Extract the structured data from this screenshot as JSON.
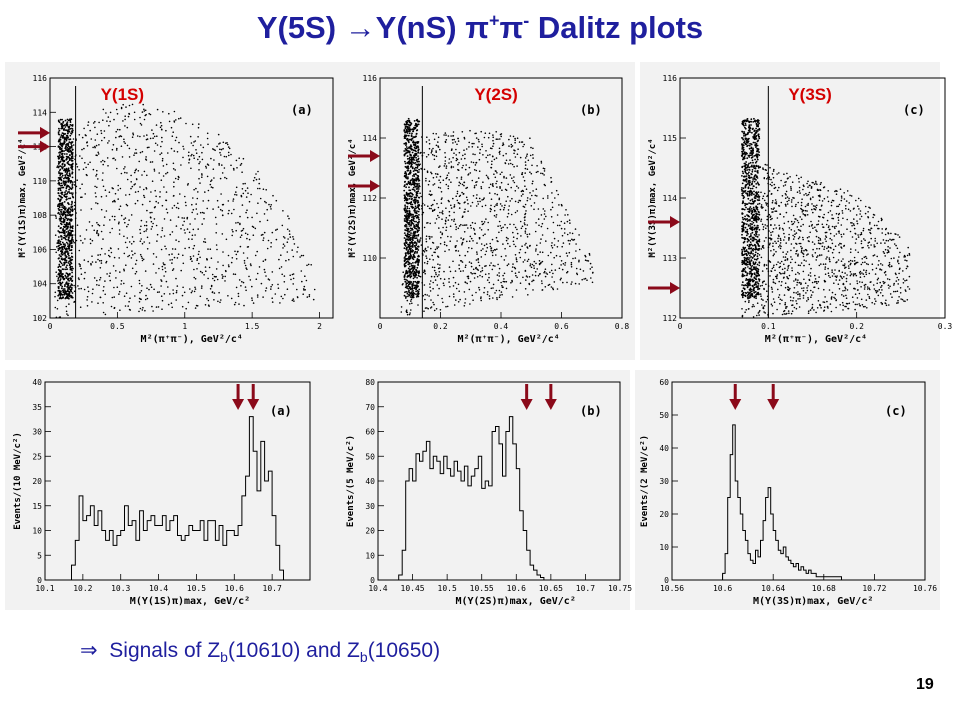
{
  "title": {
    "pre": "Υ(5S) ",
    "arrow": "→",
    "mid": "Υ(nS) π",
    "sup_plus": "+",
    "pi": "π",
    "sup_minus": "-",
    "post": " Dalitz plots"
  },
  "footer": {
    "arrow": "⇒",
    "text1": "Signals of Z",
    "sub1": "b",
    "text2": "(10610) and Z",
    "sub2": "b",
    "text3": "(10650)"
  },
  "page_number": "19",
  "colors": {
    "title": "#1f1f9e",
    "upsilon_label": "#d40000",
    "arrow": "#8b0a1a"
  },
  "chart_data": [
    {
      "id": "a",
      "type": "scatter",
      "panel_label": "(a)",
      "state_label": "Υ(1S)",
      "xlabel": "M²(π⁺π⁻), GeV²/c⁴",
      "ylabel": "M²(Υ(1S)π)max, GeV²/c⁴",
      "xlim": [
        0,
        2.1
      ],
      "ylim": [
        102,
        116
      ],
      "xticks": [
        0,
        0.5,
        1,
        1.5,
        2
      ],
      "xticklabels": [
        "0",
        "0.5",
        "1",
        "1.5",
        "2"
      ],
      "yticks": [
        102,
        104,
        106,
        108,
        110,
        112,
        114,
        116
      ],
      "yticklabels": [
        "102",
        "104",
        "106",
        "108",
        "110",
        "112",
        "114",
        "116"
      ],
      "cut_line_x": 0.19,
      "arrow_y": [
        112.8,
        112.0
      ],
      "density": {
        "band_x": [
          0.06,
          0.17
        ],
        "outline": [
          [
            0.03,
            103
          ],
          [
            0.05,
            112
          ],
          [
            0.3,
            114
          ],
          [
            0.6,
            114.6
          ],
          [
            1.0,
            114
          ],
          [
            1.4,
            112
          ],
          [
            1.7,
            109
          ],
          [
            1.95,
            105
          ],
          [
            2.0,
            103
          ]
        ]
      }
    },
    {
      "id": "b",
      "type": "scatter",
      "panel_label": "(b)",
      "state_label": "Υ(2S)",
      "xlabel": "M²(π⁺π⁻), GeV²/c⁴",
      "ylabel": "M²(Υ(2S)π)max, GeV²/c⁴",
      "xlim": [
        0,
        0.8
      ],
      "ylim": [
        108,
        116
      ],
      "xticks": [
        0,
        0.2,
        0.4,
        0.6,
        0.8
      ],
      "xticklabels": [
        "0",
        "0.2",
        "0.4",
        "0.6",
        "0.8"
      ],
      "yticks": [
        110,
        112,
        114,
        116
      ],
      "yticklabels": [
        "110",
        "112",
        "114",
        "116"
      ],
      "cut_line_x": 0.14,
      "arrow_y": [
        113.4,
        112.4
      ],
      "density": {
        "band_x": [
          0.08,
          0.13
        ],
        "outline": [
          [
            0.07,
            109
          ],
          [
            0.1,
            114
          ],
          [
            0.3,
            114.4
          ],
          [
            0.5,
            114
          ],
          [
            0.6,
            112
          ],
          [
            0.7,
            110
          ],
          [
            0.72,
            109.2
          ]
        ]
      }
    },
    {
      "id": "c",
      "type": "scatter",
      "panel_label": "(c)",
      "state_label": "Υ(3S)",
      "xlabel": "M²(π⁺π⁻), GeV²/c⁴",
      "ylabel": "M²(Υ(3S)π)max, GeV²/c⁴",
      "xlim": [
        0,
        0.3
      ],
      "ylim": [
        112,
        116
      ],
      "xticks": [
        0,
        0.1,
        0.2,
        0.3
      ],
      "xticklabels": [
        "0",
        "0.1",
        "0.2",
        "0.3"
      ],
      "yticks": [
        112,
        113,
        114,
        115,
        116
      ],
      "yticklabels": [
        "112",
        "113",
        "114",
        "115",
        "116"
      ],
      "cut_line_x": 0.1,
      "arrow_y": [
        113.6,
        112.5
      ],
      "density": {
        "band_x": [
          0.07,
          0.09
        ],
        "outline": [
          [
            0.07,
            112.3
          ],
          [
            0.09,
            114.6
          ],
          [
            0.15,
            114.3
          ],
          [
            0.2,
            114.1
          ],
          [
            0.26,
            113.2
          ],
          [
            0.26,
            112.2
          ]
        ]
      }
    },
    {
      "id": "a",
      "type": "histogram",
      "panel_label": "(a)",
      "xlabel": "M(Υ(1S)π)max, GeV/c²",
      "ylabel": "Events/(10 MeV/c²)",
      "xlim": [
        10.1,
        10.8
      ],
      "ylim": [
        0,
        40
      ],
      "xticks": [
        10.1,
        10.2,
        10.3,
        10.4,
        10.5,
        10.6,
        10.7
      ],
      "xticklabels": [
        "10.1",
        "10.2",
        "10.3",
        "10.4",
        "10.5",
        "10.6",
        "10.7"
      ],
      "yticks": [
        0,
        5,
        10,
        15,
        20,
        25,
        30,
        35,
        40
      ],
      "yticklabels": [
        "0",
        "5",
        "10",
        "15",
        "20",
        "25",
        "30",
        "35",
        "40"
      ],
      "bin_start": 10.17,
      "bin_width": 0.01,
      "values": [
        3,
        8,
        17,
        12,
        13,
        15,
        11,
        14,
        10,
        8,
        10,
        7,
        9,
        10,
        15,
        11,
        12,
        8,
        14,
        10,
        12,
        13,
        11,
        11,
        13,
        10,
        12,
        13,
        9,
        8,
        9,
        11,
        10,
        10,
        12,
        8,
        12,
        12,
        8,
        11,
        7,
        10,
        10,
        9,
        11,
        17,
        21,
        33,
        26,
        18,
        28,
        20,
        22,
        13,
        7,
        2
      ],
      "arrow_x": [
        10.61,
        10.65
      ]
    },
    {
      "id": "b",
      "type": "histogram",
      "panel_label": "(b)",
      "xlabel": "M(Υ(2S)π)max, GeV/c²",
      "ylabel": "Events/(5 MeV/c²)",
      "xlim": [
        10.4,
        10.75
      ],
      "ylim": [
        0,
        80
      ],
      "xticks": [
        10.4,
        10.45,
        10.5,
        10.55,
        10.6,
        10.65,
        10.7,
        10.75
      ],
      "xticklabels": [
        "10.4",
        "10.45",
        "10.5",
        "10.55",
        "10.6",
        "10.65",
        "10.7",
        "10.75"
      ],
      "yticks": [
        0,
        10,
        20,
        30,
        40,
        50,
        60,
        70,
        80
      ],
      "yticklabels": [
        "0",
        "10",
        "20",
        "30",
        "40",
        "50",
        "60",
        "70",
        "80"
      ],
      "bin_start": 10.43,
      "bin_width": 0.005,
      "values": [
        2,
        12,
        40,
        45,
        40,
        51,
        48,
        52,
        56,
        45,
        50,
        48,
        43,
        50,
        45,
        42,
        48,
        44,
        40,
        46,
        38,
        42,
        45,
        50,
        37,
        40,
        38,
        60,
        62,
        55,
        42,
        60,
        66,
        55,
        45,
        28,
        20,
        12,
        6,
        4,
        2,
        1
      ],
      "arrow_x": [
        10.615,
        10.65
      ]
    },
    {
      "id": "c",
      "type": "histogram",
      "panel_label": "(c)",
      "xlabel": "M(Υ(3S)π)max, GeV/c²",
      "ylabel": "Events/(2 MeV/c²)",
      "xlim": [
        10.56,
        10.76
      ],
      "ylim": [
        0,
        60
      ],
      "xticks": [
        10.56,
        10.6,
        10.64,
        10.68,
        10.72,
        10.76
      ],
      "xticklabels": [
        "10.56",
        "10.6",
        "10.64",
        "10.68",
        "10.72",
        "10.76"
      ],
      "yticks": [
        0,
        10,
        20,
        30,
        40,
        50,
        60
      ],
      "yticklabels": [
        "0",
        "10",
        "20",
        "30",
        "40",
        "50",
        "60"
      ],
      "bin_start": 10.6,
      "bin_width": 0.002,
      "values": [
        2,
        8,
        25,
        38,
        47,
        30,
        25,
        20,
        15,
        12,
        8,
        6,
        5,
        9,
        7,
        12,
        18,
        25,
        28,
        20,
        15,
        12,
        9,
        8,
        10,
        7,
        6,
        5,
        4,
        5,
        3,
        4,
        3,
        2,
        3,
        2,
        2,
        1,
        1,
        1,
        1,
        1,
        1,
        1,
        1,
        1,
        1
      ],
      "arrow_x": [
        10.61,
        10.64
      ]
    }
  ]
}
